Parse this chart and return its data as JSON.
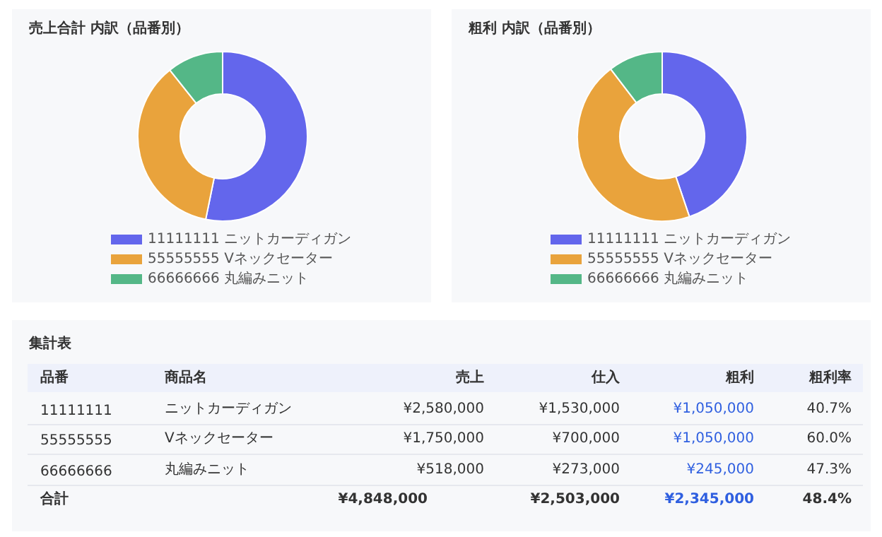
{
  "chart_data": [
    {
      "type": "donut",
      "title": "売上合計 内訳（品番別）",
      "categories": [
        "11111111 ニットカーディガン",
        "55555555 Vネックセーター",
        "66666666 丸編みニット"
      ],
      "values": [
        53.2,
        36.1,
        10.7
      ],
      "colors": [
        "#6366ec",
        "#e9a33c",
        "#54b787"
      ],
      "legend": "bottom"
    },
    {
      "type": "donut",
      "title": "粗利 内訳（品番別）",
      "categories": [
        "11111111 ニットカーディガン",
        "55555555 Vネックセーター",
        "66666666 丸編みニット"
      ],
      "values": [
        44.8,
        44.8,
        10.4
      ],
      "colors": [
        "#6366ec",
        "#e9a33c",
        "#54b787"
      ],
      "legend": "bottom"
    },
    {
      "type": "other",
      "title": "集計表",
      "annotations": [
        "品番",
        "商品名",
        "売上",
        "仕入",
        "粗利",
        "粗利率",
        "11111111",
        "ニットカーディガン",
        "¥2,580,000",
        "¥1,530,000",
        "¥1,050,000",
        "40.7%",
        "55555555",
        "Vネックセーター",
        "¥1,750,000",
        "¥700,000",
        "¥1,050,000",
        "60.0%",
        "66666666",
        "丸編みニット",
        "¥518,000",
        "¥273,000",
        "¥245,000",
        "47.3%",
        "合計",
        "¥4,848,000",
        "¥2,503,000",
        "¥2,345,000",
        "48.4%"
      ]
    }
  ]
}
